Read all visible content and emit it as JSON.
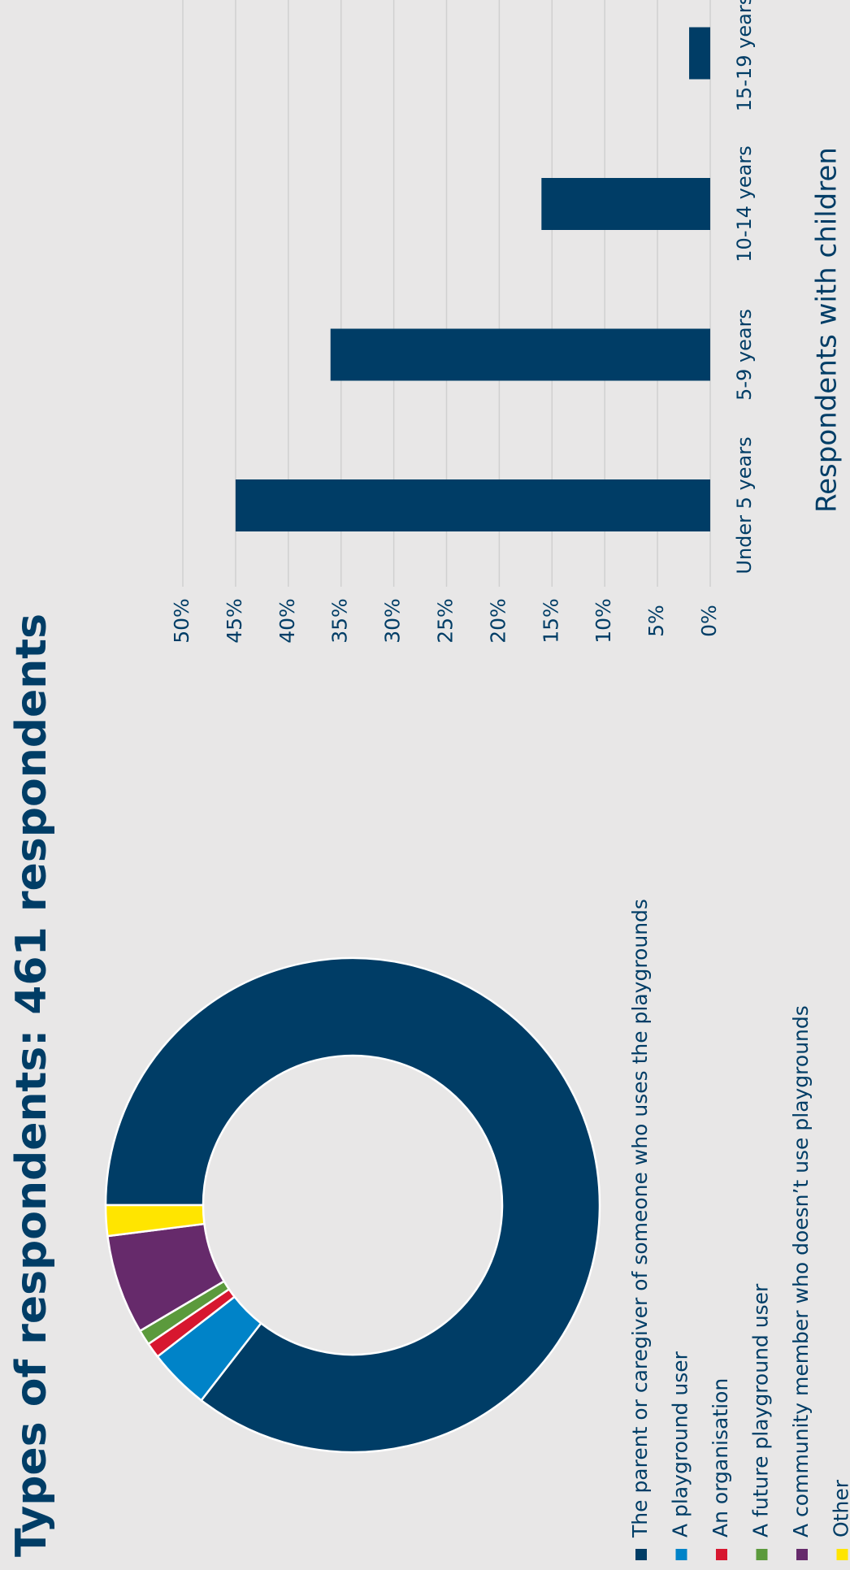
{
  "chart_data": [
    {
      "type": "donut",
      "title": "Types of respondents: 461 respondents",
      "categories": [
        "The parent or caregiver of someone who uses the playgrounds",
        "A playground user",
        "An organisation",
        "A future playground user",
        "A community member who doesn’t use playgrounds",
        "Other"
      ],
      "values": [
        85.5,
        4,
        1,
        1,
        6.5,
        2
      ],
      "colors": [
        "#003d66",
        "#0083c8",
        "#d7172f",
        "#5b9a3c",
        "#662a6b",
        "#ffe500"
      ]
    },
    {
      "type": "bar",
      "x_label": "Respondents with children",
      "categories": [
        "Under 5 years",
        "5-9 years",
        "10-14 years",
        "15-19 years"
      ],
      "values": [
        45,
        36,
        16,
        2
      ],
      "color": "#003d66",
      "ylim": [
        0,
        50
      ],
      "yticks": [
        {
          "value": 0,
          "label": "0%"
        },
        {
          "value": 5,
          "label": "5%"
        },
        {
          "value": 10,
          "label": "10%"
        },
        {
          "value": 15,
          "label": "15%"
        },
        {
          "value": 20,
          "label": "20%"
        },
        {
          "value": 25,
          "label": "25%"
        },
        {
          "value": 30,
          "label": "30%"
        },
        {
          "value": 35,
          "label": "35%"
        },
        {
          "value": 40,
          "label": "40%"
        },
        {
          "value": 45,
          "label": "45%"
        },
        {
          "value": 50,
          "label": "50%"
        }
      ],
      "grid": true
    }
  ]
}
